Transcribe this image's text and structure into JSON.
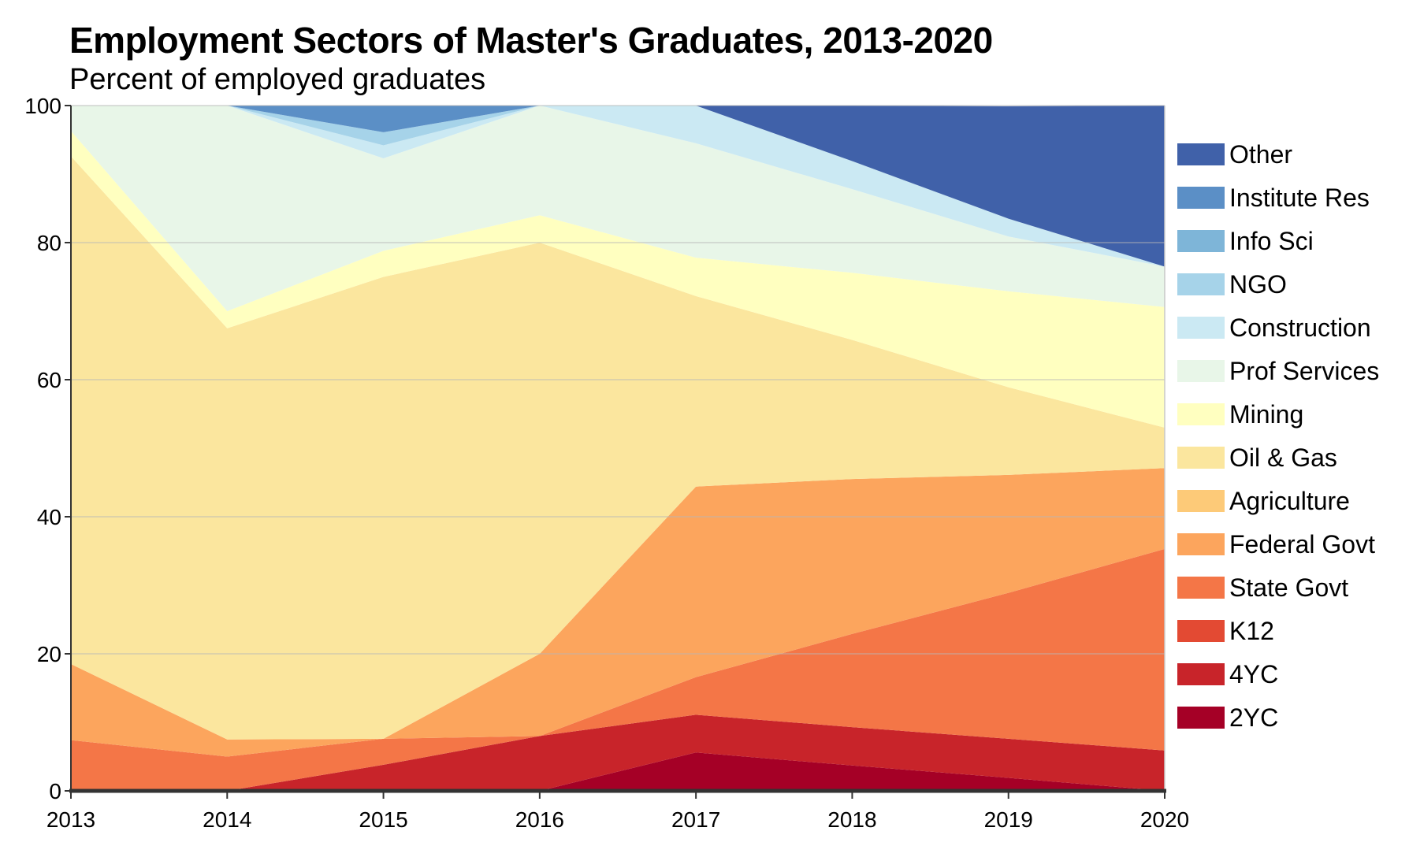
{
  "chart_data": {
    "type": "area",
    "stacked": true,
    "title": "Employment Sectors of Master's Graduates, 2013-2020",
    "subtitle": "Percent of employed graduates",
    "xlabel": "",
    "ylabel": "",
    "x": [
      "2013",
      "2014",
      "2015",
      "2016",
      "2017",
      "2018",
      "2019",
      "2020"
    ],
    "ylim": [
      0,
      100
    ],
    "yticks": [
      "0",
      "20",
      "40",
      "60",
      "80",
      "100"
    ],
    "grid": true,
    "legend_position": "right",
    "series": [
      {
        "name": "2YC",
        "color": "#a50026",
        "values": [
          0,
          0,
          0,
          0,
          5.6,
          3.7,
          1.9,
          0
        ]
      },
      {
        "name": "4YC",
        "color": "#c8242a",
        "values": [
          0,
          0,
          3.8,
          8.0,
          5.5,
          5.6,
          5.7,
          5.9
        ]
      },
      {
        "name": "K12",
        "color": "#e34a33",
        "values": [
          0,
          0,
          0,
          0,
          0,
          0,
          0,
          0
        ]
      },
      {
        "name": "State Govt",
        "color": "#f47647",
        "values": [
          7.4,
          5.0,
          3.8,
          0,
          5.5,
          13.6,
          21.3,
          29.4
        ]
      },
      {
        "name": "Federal Govt",
        "color": "#fca55d",
        "values": [
          11.1,
          2.5,
          0,
          12.0,
          27.8,
          22.6,
          17.2,
          11.8
        ]
      },
      {
        "name": "Agriculture",
        "color": "#fdca78",
        "values": [
          0,
          0,
          0,
          0,
          0,
          0,
          0,
          0
        ]
      },
      {
        "name": "Oil & Gas",
        "color": "#fbe69e",
        "values": [
          74.1,
          60.0,
          67.4,
          60.0,
          27.8,
          20.3,
          12.8,
          5.9
        ]
      },
      {
        "name": "Mining",
        "color": "#ffffc0",
        "values": [
          3.7,
          2.5,
          3.8,
          4.0,
          5.6,
          9.8,
          14.0,
          17.6
        ]
      },
      {
        "name": "Prof Services",
        "color": "#e8f6e8",
        "values": [
          3.7,
          30.0,
          13.5,
          16.0,
          16.7,
          12.2,
          8.0,
          5.9
        ]
      },
      {
        "name": "Construction",
        "color": "#cbe9f3",
        "values": [
          0,
          0,
          1.9,
          0,
          5.5,
          4.1,
          2.6,
          0
        ]
      },
      {
        "name": "NGO",
        "color": "#a6d3e9",
        "values": [
          0,
          0,
          1.9,
          0,
          0,
          0,
          0,
          0
        ]
      },
      {
        "name": "Info Sci",
        "color": "#7eb5d8",
        "values": [
          0,
          0,
          0,
          0,
          0,
          0,
          0,
          0
        ]
      },
      {
        "name": "Institute Res",
        "color": "#5b8fc6",
        "values": [
          0,
          0,
          3.9,
          0,
          0,
          0,
          0,
          0
        ]
      },
      {
        "name": "Other",
        "color": "#4061a9",
        "values": [
          0,
          0,
          0,
          0,
          0,
          8.1,
          16.4,
          23.5
        ]
      }
    ]
  }
}
